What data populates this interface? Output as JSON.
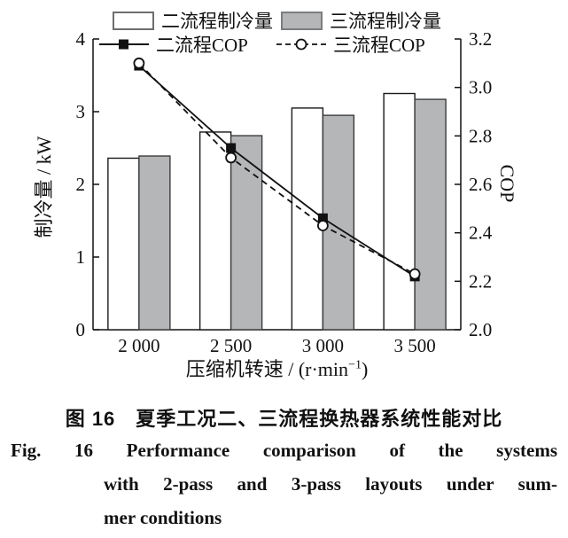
{
  "chart_data": {
    "type": "bar+line",
    "categories": [
      "2 000",
      "2 500",
      "3 000",
      "3 500"
    ],
    "bar_series": [
      {
        "name": "二流程制冷量",
        "values": [
          2.36,
          2.72,
          3.05,
          3.25
        ],
        "fill": "#ffffff",
        "stroke": "#1a1a1a"
      },
      {
        "name": "三流程制冷量",
        "values": [
          2.39,
          2.67,
          2.95,
          3.17
        ],
        "fill": "#b4b6b8",
        "stroke": "#3c3c3c"
      }
    ],
    "line_series": [
      {
        "name": "二流程COP",
        "values": [
          3.09,
          2.75,
          2.46,
          2.22
        ],
        "marker": "filled-square",
        "dash": "none"
      },
      {
        "name": "三流程COP",
        "values": [
          3.1,
          2.71,
          2.43,
          2.23
        ],
        "marker": "open-circle",
        "dash": "7 5"
      }
    ],
    "xlabel": "压缩机转速 / (r·min⁻¹)",
    "xlabel_parts": {
      "main": "压缩机转速 / (r·min",
      "sup": "−1",
      "close": ")"
    },
    "ylabel_left": "制冷量 / kW",
    "ylabel_right": "COP",
    "ylim_left": [
      0,
      4
    ],
    "yticks_left": [
      "0",
      "1",
      "2",
      "3",
      "4"
    ],
    "ylim_right": [
      2.0,
      3.2
    ],
    "yticks_right": [
      "2.0",
      "2.2",
      "2.4",
      "2.6",
      "2.8",
      "3.0",
      "3.2"
    ],
    "grid": false,
    "legend_position": "top-inside",
    "line_color": "#111111"
  },
  "caption": {
    "zh": "图 16　夏季工况二、三流程换热器系统性能对比",
    "en_line1": "Fig. 16 Performance comparison of the systems",
    "en_line2": "with 2-pass and 3-pass layouts under sum-",
    "en_line3": "mer conditions"
  }
}
